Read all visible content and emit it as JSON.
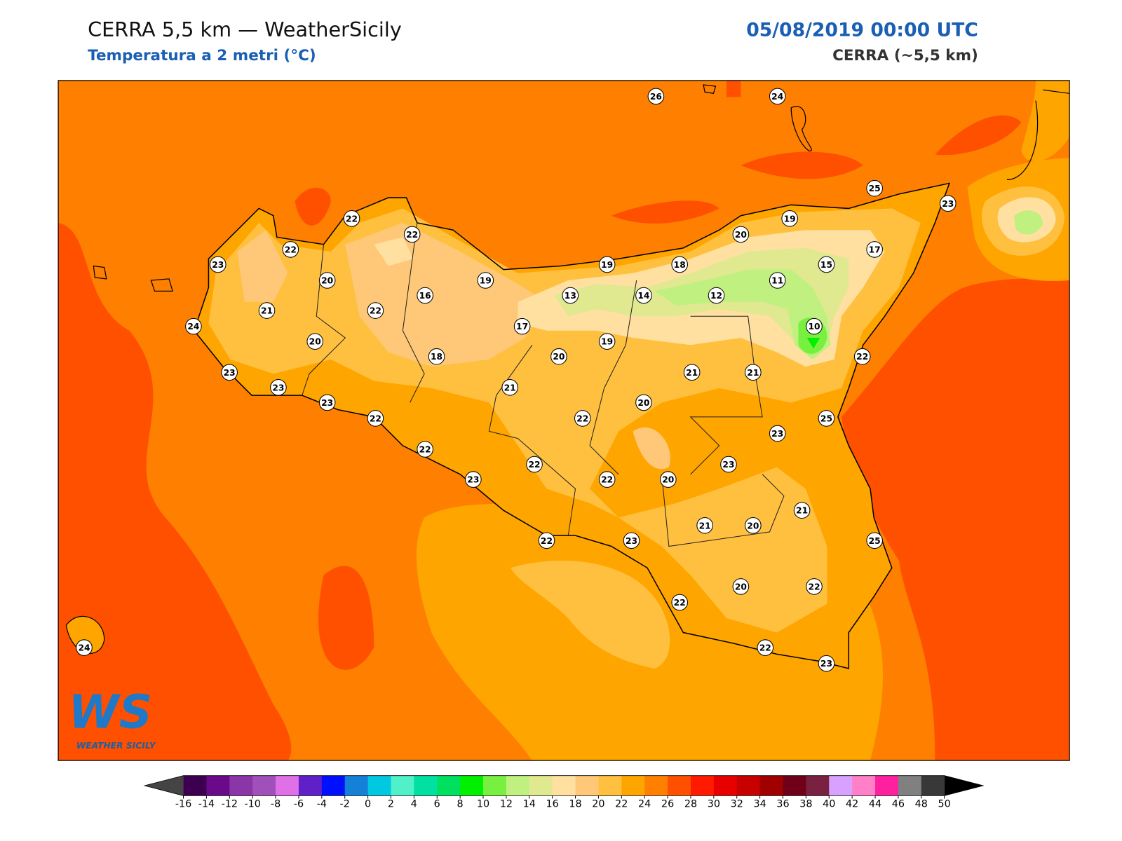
{
  "header": {
    "title": "CERRA 5,5 km — WeatherSicily",
    "subtitle": "Temperatura a 2 metri (°C)",
    "date": "05/08/2019 00:00 UTC",
    "model": "CERRA (~5,5 km)"
  },
  "logo": {
    "mark": "WS",
    "caption": "WEATHER SICILY"
  },
  "stations": [
    26,
    24,
    25,
    23,
    22,
    22,
    20,
    19,
    22,
    17,
    23,
    19,
    18,
    15,
    20,
    19,
    11,
    16,
    13,
    14,
    12,
    21,
    22,
    24,
    17,
    10,
    20,
    19,
    18,
    20,
    22,
    23,
    21,
    21,
    23,
    21,
    23,
    20,
    22,
    22,
    25,
    23,
    22,
    22,
    23,
    23,
    22,
    20,
    21,
    21,
    20,
    22,
    23,
    25,
    20,
    22,
    22,
    24,
    22,
    23
  ],
  "colorbar": {
    "ticks": [
      -16,
      -14,
      -12,
      -10,
      -8,
      -6,
      -4,
      -2,
      0,
      2,
      4,
      6,
      8,
      10,
      12,
      14,
      16,
      18,
      20,
      22,
      24,
      26,
      28,
      30,
      32,
      34,
      36,
      38,
      40,
      42,
      44,
      46,
      48,
      50
    ],
    "colors": [
      "#3d0050",
      "#6a0a8a",
      "#8a35a8",
      "#a050b8",
      "#e070e8",
      "#6020c8",
      "#0010ff",
      "#1480d8",
      "#00c8e0",
      "#50f0c8",
      "#00e0a0",
      "#00e060",
      "#00f000",
      "#78f040",
      "#c0f080",
      "#e0e890",
      "#ffe0a0",
      "#ffc878",
      "#ffc040",
      "#ffa500",
      "#ff8000",
      "#ff5000",
      "#ff1a00",
      "#e80000",
      "#c80000",
      "#a00000",
      "#700018",
      "#7a2040",
      "#d8a0ff",
      "#ff80c8",
      "#ff20a0",
      "#808080",
      "#383838"
    ],
    "under_color": "#444444",
    "over_color": "#000000"
  }
}
